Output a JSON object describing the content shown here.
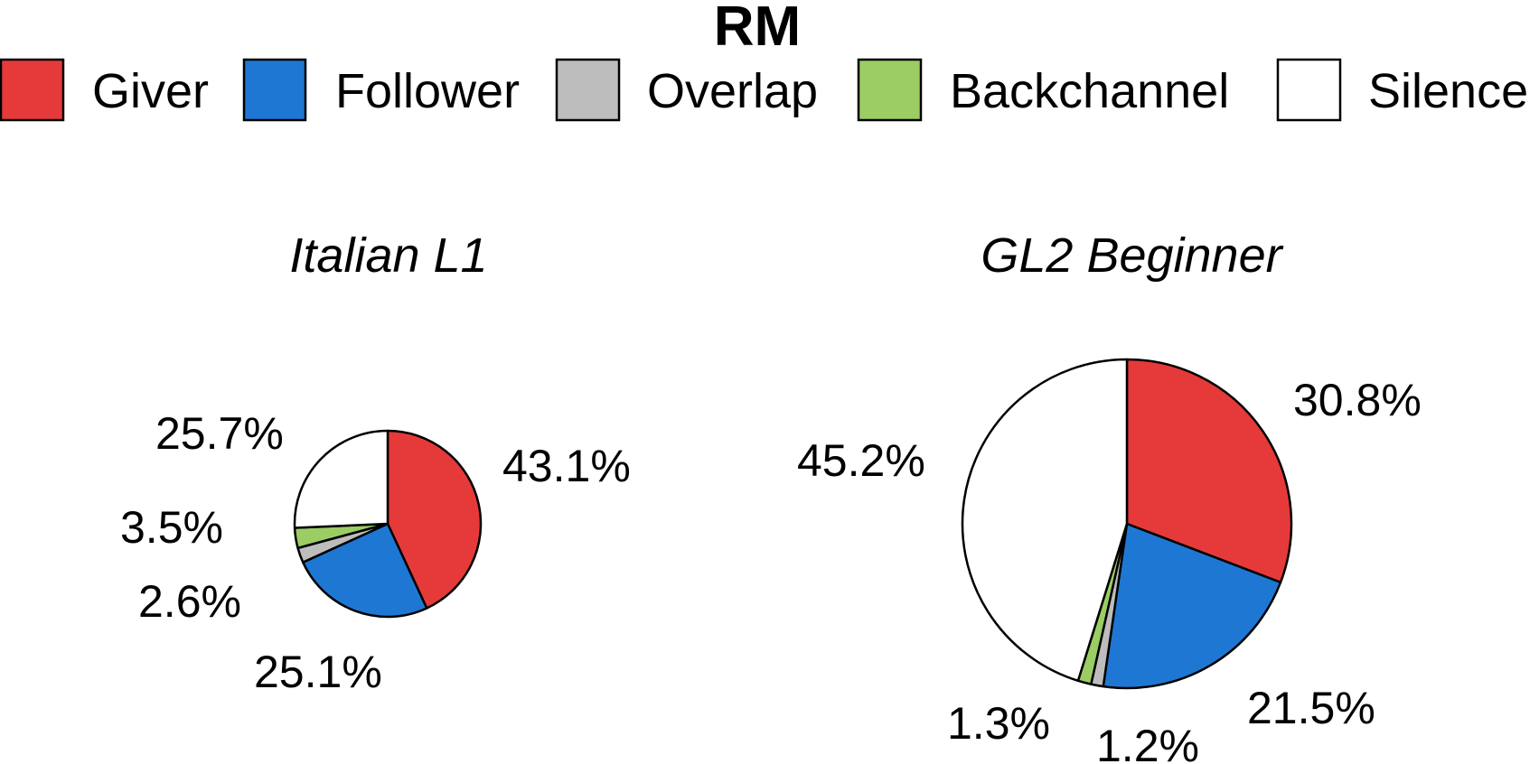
{
  "title": "RM",
  "legend": [
    {
      "label": "Giver",
      "color": "#e63a3a"
    },
    {
      "label": "Follower",
      "color": "#1f77d4"
    },
    {
      "label": "Overlap",
      "color": "#bdbdbd"
    },
    {
      "label": "Backchannel",
      "color": "#9ccd64"
    },
    {
      "label": "Silence",
      "color": "#ffffff"
    }
  ],
  "chart_data": [
    {
      "type": "pie",
      "title": "Italian L1",
      "categories": [
        "Giver",
        "Follower",
        "Overlap",
        "Backchannel",
        "Silence"
      ],
      "values": [
        43.1,
        25.1,
        2.6,
        3.5,
        25.7
      ],
      "labels": [
        "43.1%",
        "25.1%",
        "2.6%",
        "3.5%",
        "25.7%"
      ]
    },
    {
      "type": "pie",
      "title": "GL2 Beginner",
      "categories": [
        "Giver",
        "Follower",
        "Overlap",
        "Backchannel",
        "Silence"
      ],
      "values": [
        30.8,
        21.5,
        1.2,
        1.3,
        45.2
      ],
      "labels": [
        "30.8%",
        "21.5%",
        "1.2%",
        "1.3%",
        "45.2%"
      ]
    }
  ]
}
